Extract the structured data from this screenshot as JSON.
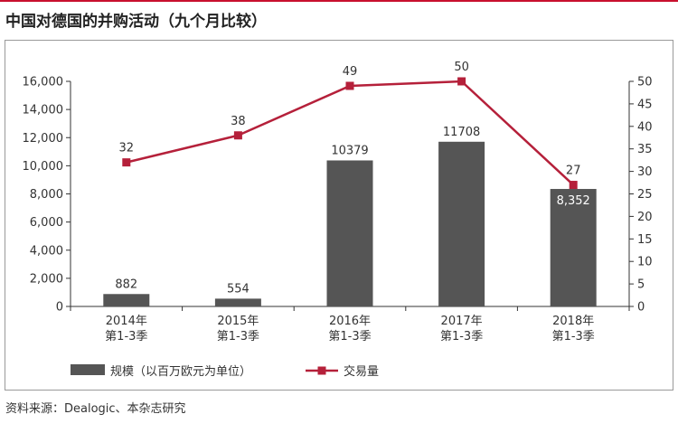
{
  "title": "中国对德国的并购活动（九个月比较）",
  "source": "资料来源：Dealogic、本杂志研究",
  "colors": {
    "bar": "#555555",
    "line": "#b5203a",
    "rule": "#c8102e"
  },
  "chart_data": {
    "type": "bar",
    "categories": [
      {
        "year": "2014年",
        "period": "第1-3季"
      },
      {
        "year": "2015年",
        "period": "第1-3季"
      },
      {
        "year": "2016年",
        "period": "第1-3季"
      },
      {
        "year": "2017年",
        "period": "第1-3季"
      },
      {
        "year": "2018年",
        "period": "第1-3季"
      }
    ],
    "series": [
      {
        "name": "规模（以百万欧元为单位）",
        "type": "bar",
        "axis": "left",
        "values": [
          882,
          554,
          10379,
          11708,
          8352
        ],
        "labels": [
          "882",
          "554",
          "10379",
          "11708",
          "8,352"
        ]
      },
      {
        "name": "交易量",
        "type": "line",
        "axis": "right",
        "marker": "square",
        "values": [
          32,
          38,
          49,
          50,
          27
        ],
        "labels": [
          "32",
          "38",
          "49",
          "50",
          "27"
        ]
      }
    ],
    "y_left": {
      "range": [
        0,
        16000
      ],
      "ticks": [
        0,
        2000,
        4000,
        6000,
        8000,
        10000,
        12000,
        14000,
        16000
      ],
      "tick_labels": [
        "0",
        "2,000",
        "4,000",
        "6,000",
        "8,000",
        "10,000",
        "12,000",
        "14,000",
        "16,000"
      ]
    },
    "y_right": {
      "range": [
        0,
        50
      ],
      "ticks": [
        0,
        5,
        10,
        15,
        20,
        25,
        30,
        35,
        40,
        45,
        50
      ],
      "tick_labels": [
        "0",
        "5",
        "10",
        "15",
        "20",
        "25",
        "30",
        "35",
        "40",
        "45",
        "50"
      ]
    },
    "grid": false,
    "legend_position": "bottom-left"
  }
}
